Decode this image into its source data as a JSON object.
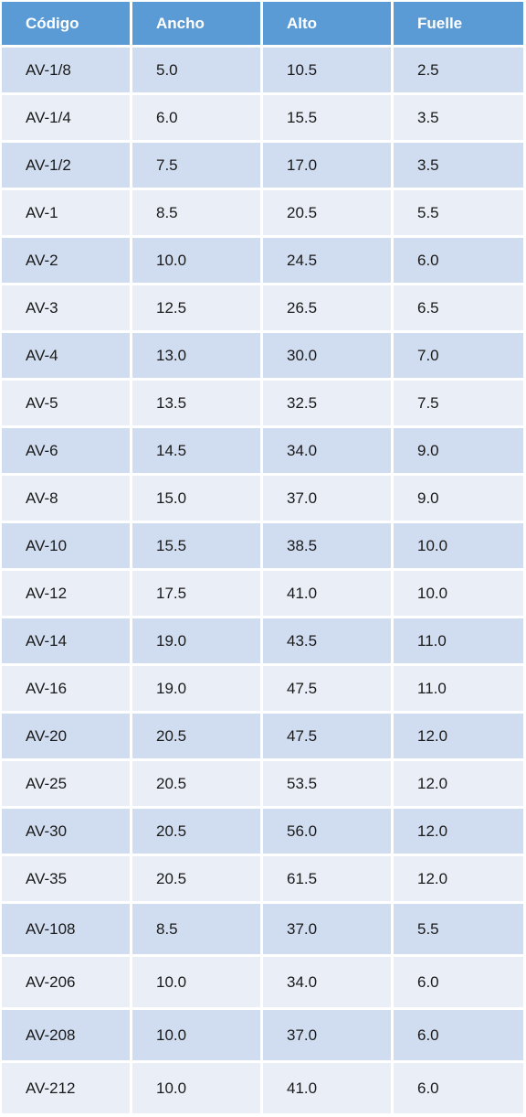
{
  "table": {
    "header": [
      "Código",
      "Ancho",
      "Alto",
      "Fuelle"
    ],
    "rows": [
      [
        "AV-1/8",
        "5.0",
        "10.5",
        "2.5"
      ],
      [
        "AV-1/4",
        "6.0",
        "15.5",
        "3.5"
      ],
      [
        "AV-1/2",
        "7.5",
        "17.0",
        "3.5"
      ],
      [
        "AV-1",
        "8.5",
        "20.5",
        "5.5"
      ],
      [
        "AV-2",
        "10.0",
        "24.5",
        "6.0"
      ],
      [
        "AV-3",
        "12.5",
        "26.5",
        "6.5"
      ],
      [
        "AV-4",
        "13.0",
        "30.0",
        "7.0"
      ],
      [
        "AV-5",
        "13.5",
        "32.5",
        "7.5"
      ],
      [
        "AV-6",
        "14.5",
        "34.0",
        "9.0"
      ],
      [
        "AV-8",
        "15.0",
        "37.0",
        "9.0"
      ],
      [
        "AV-10",
        "15.5",
        "38.5",
        "10.0"
      ],
      [
        "AV-12",
        "17.5",
        "41.0",
        "10.0"
      ],
      [
        "AV-14",
        "19.0",
        "43.5",
        "11.0"
      ],
      [
        "AV-16",
        "19.0",
        "47.5",
        "11.0"
      ],
      [
        "AV-20",
        "20.5",
        "47.5",
        "12.0"
      ],
      [
        "AV-25",
        "20.5",
        "53.5",
        "12.0"
      ],
      [
        "AV-30",
        "20.5",
        "56.0",
        "12.0"
      ],
      [
        "AV-35",
        "20.5",
        "61.5",
        "12.0"
      ],
      [
        "AV-108",
        "8.5",
        "37.0",
        "5.5"
      ],
      [
        "AV-206",
        "10.0",
        "34.0",
        "6.0"
      ],
      [
        "AV-208",
        "10.0",
        "37.0",
        "6.0"
      ],
      [
        "AV-212",
        "10.0",
        "41.0",
        "6.0"
      ]
    ]
  }
}
